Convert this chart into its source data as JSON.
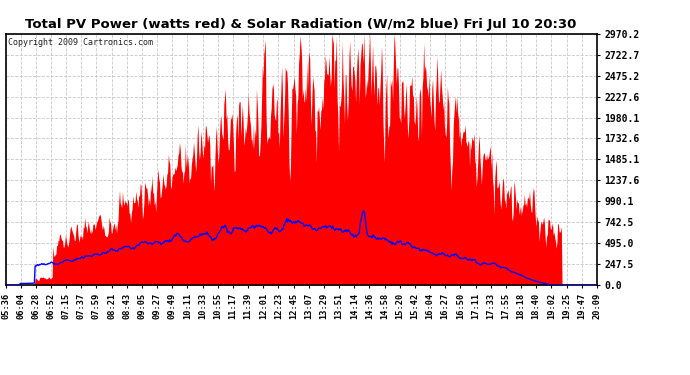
{
  "title": "Total PV Power (watts red) & Solar Radiation (W/m2 blue) Fri Jul 10 20:30",
  "copyright": "Copyright 2009 Cartronics.com",
  "background_color": "#ffffff",
  "plot_bg_color": "#ffffff",
  "grid_color": "#c8c8c8",
  "red_fill_color": "#ff0000",
  "blue_line_color": "#0000ff",
  "yticks": [
    0.0,
    247.5,
    495.0,
    742.5,
    990.1,
    1237.6,
    1485.1,
    1732.6,
    1980.1,
    2227.6,
    2475.2,
    2722.7,
    2970.2
  ],
  "ymax": 2970.2,
  "xtick_labels": [
    "05:36",
    "06:04",
    "06:28",
    "06:52",
    "07:15",
    "07:37",
    "07:59",
    "08:21",
    "08:43",
    "09:05",
    "09:27",
    "09:49",
    "10:11",
    "10:33",
    "10:55",
    "11:17",
    "11:39",
    "12:01",
    "12:23",
    "12:45",
    "13:07",
    "13:29",
    "13:51",
    "14:14",
    "14:36",
    "14:58",
    "15:20",
    "15:42",
    "16:04",
    "16:27",
    "16:50",
    "17:11",
    "17:33",
    "17:55",
    "18:18",
    "18:40",
    "19:02",
    "19:25",
    "19:47",
    "20:09"
  ],
  "n_points": 800
}
